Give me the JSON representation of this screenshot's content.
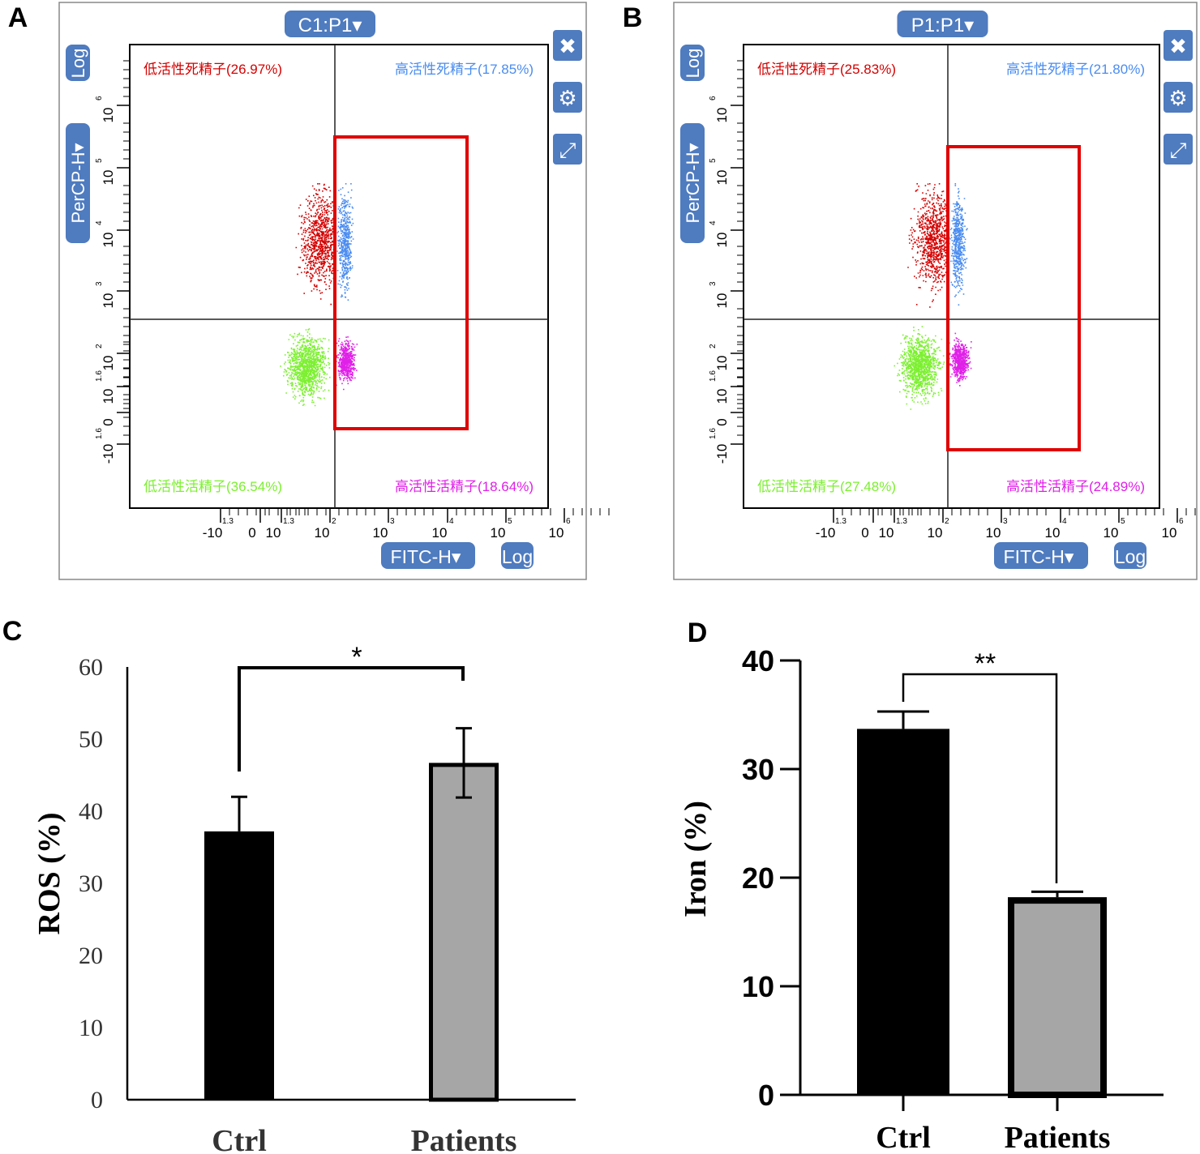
{
  "panel_labels": {
    "a": "A",
    "b": "B",
    "c": "C",
    "d": "D"
  },
  "ui": {
    "log": "Log",
    "y_channel": "PerCP-H▾",
    "x_channel": "FITC-H▾",
    "close_icon": "close-icon",
    "settings_icon": "gear-icon",
    "expand_icon": "expand-icon"
  },
  "chart_data": [
    {
      "type": "scatter",
      "title": "C1:P1▾",
      "xlabel": "FITC-H",
      "ylabel": "PerCP-H",
      "x_ticks": [
        "-10",
        "0",
        "10",
        "10",
        "10",
        "10",
        "10",
        "10"
      ],
      "x_tick_exps": [
        "1.3",
        "",
        "1.3",
        "2",
        "3",
        "4",
        "5",
        "6"
      ],
      "y_ticks": [
        "-10",
        "0",
        "10",
        "10",
        "10",
        "10",
        "10",
        "10"
      ],
      "y_tick_exps": [
        "1.6",
        "",
        "1.6",
        "2",
        "3",
        "4",
        "5",
        "6"
      ],
      "quadrants": {
        "ul": "低活性死精子(26.97%)",
        "ur": "高活性死精子(17.85%)",
        "ll": "低活性活精子(36.54%)",
        "lr": "高活性活精子(18.64%)"
      },
      "colors": {
        "ul": "#d40000",
        "ur": "#4a8cf0",
        "ll": "#7cf030",
        "lr": "#e020e8",
        "gate": "#e00000"
      }
    },
    {
      "type": "scatter",
      "title": "P1:P1▾",
      "xlabel": "FITC-H",
      "ylabel": "PerCP-H",
      "quadrants": {
        "ul": "低活性死精子(25.83%)",
        "ur": "高活性死精子(21.80%)",
        "ll": "低活性活精子(27.48%)",
        "lr": "高活性活精子(24.89%)"
      },
      "colors": {
        "ul": "#d40000",
        "ur": "#4a8cf0",
        "ll": "#7cf030",
        "lr": "#e020e8",
        "gate": "#e00000"
      }
    },
    {
      "type": "bar",
      "ylabel": "ROS (%)",
      "categories": [
        "Ctrl",
        "Patients"
      ],
      "values": [
        37.2,
        46.7
      ],
      "errors": [
        4.8,
        4.8
      ],
      "ylim": [
        0,
        60
      ],
      "yticks": [
        "0",
        "10",
        "20",
        "30",
        "40",
        "50",
        "60"
      ],
      "significance": "*",
      "colors": [
        "#000000",
        "#a6a6a6"
      ]
    },
    {
      "type": "bar",
      "ylabel": "Iron (%)",
      "categories": [
        "Ctrl",
        "Patients"
      ],
      "values": [
        33.7,
        18.2
      ],
      "errors": [
        1.6,
        0.5
      ],
      "ylim": [
        0,
        40
      ],
      "yticks": [
        "0",
        "10",
        "20",
        "30",
        "40"
      ],
      "significance": "**",
      "colors": [
        "#000000",
        "#a6a6a6"
      ]
    }
  ]
}
